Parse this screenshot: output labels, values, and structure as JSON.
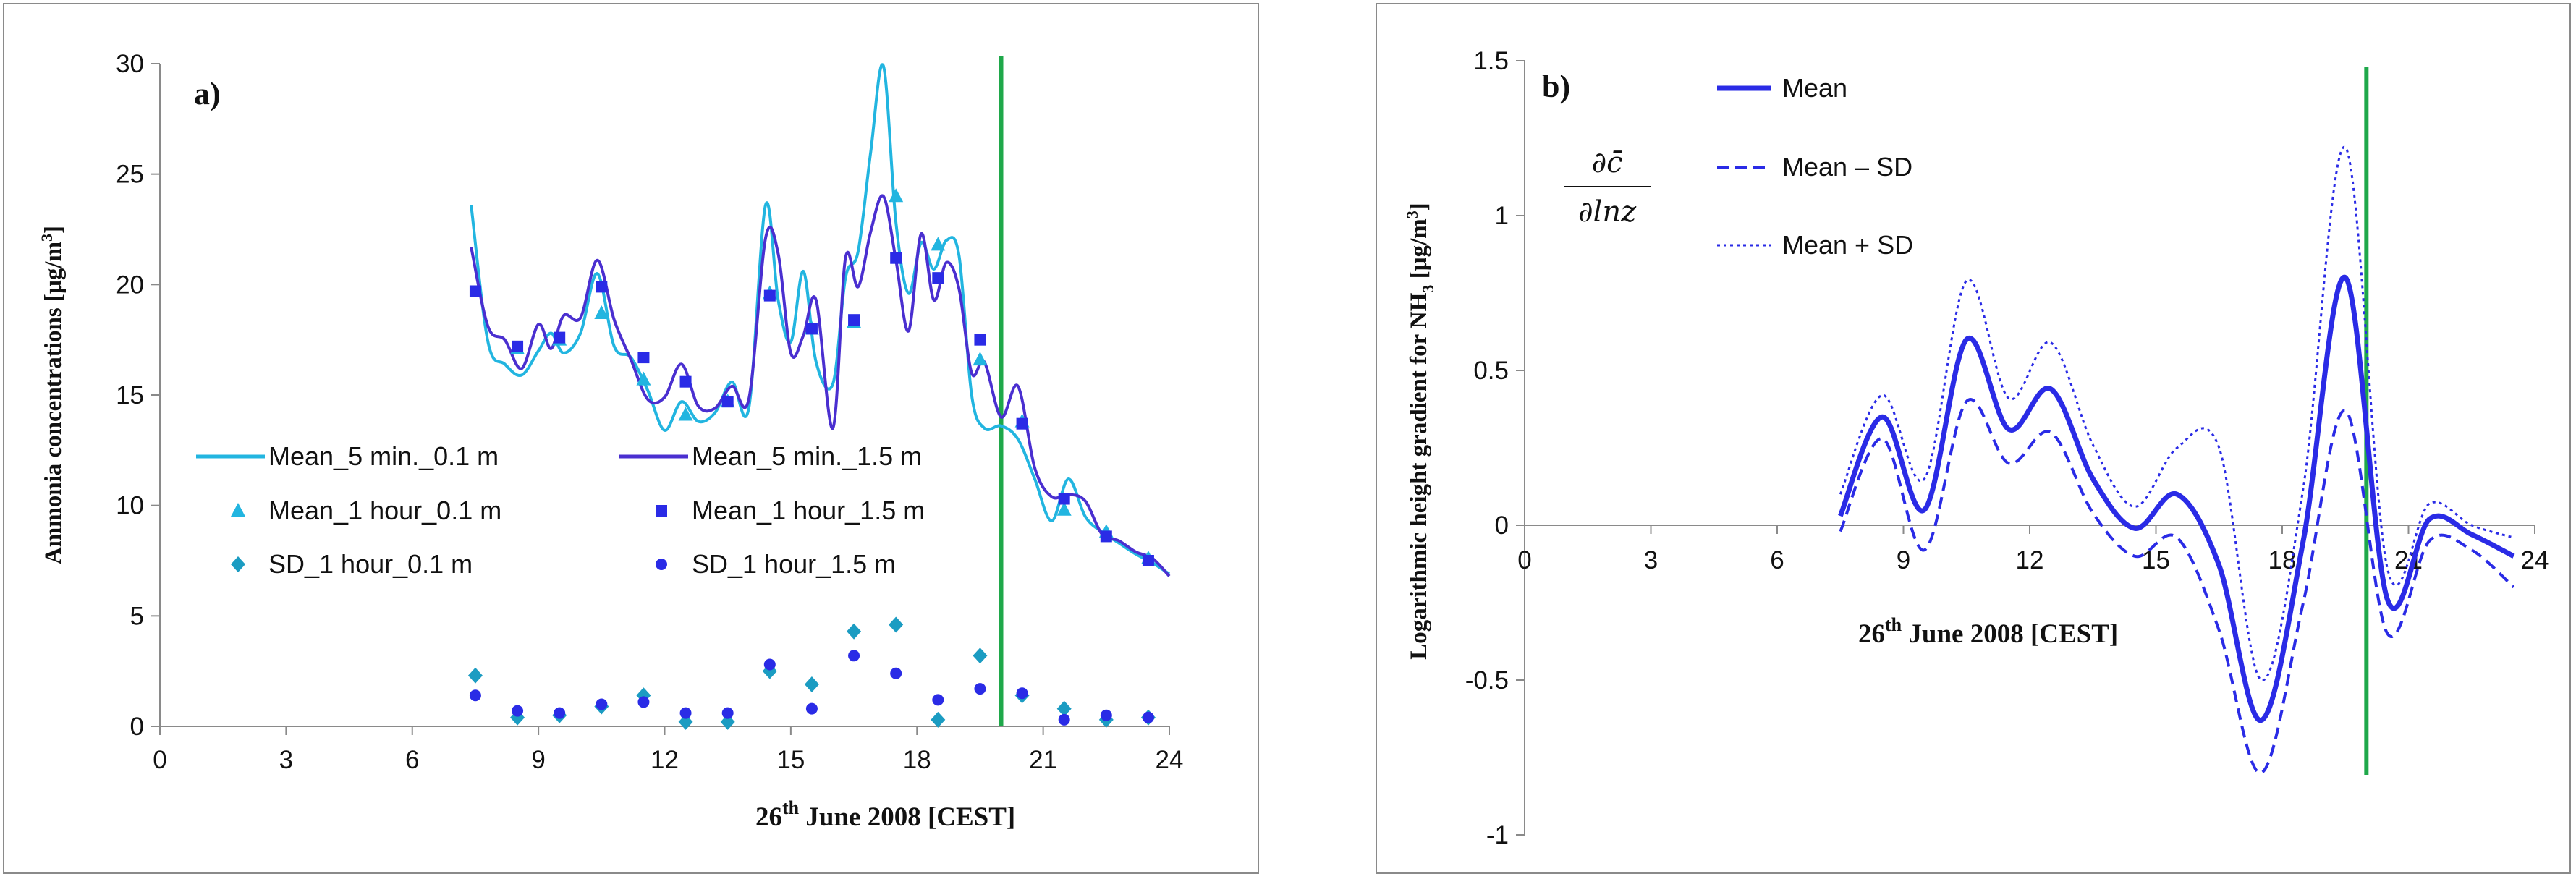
{
  "colors": {
    "cyan": "#22b5e0",
    "purple": "#4a2fd0",
    "teal": "#1b9cc2",
    "blue": "#2a2be6",
    "green": "#1fa84a",
    "axis": "#8a8a8a"
  },
  "chart_data": [
    {
      "type": "line",
      "panel_label": "a)",
      "title": "",
      "xlabel": "June 2008  [CEST]",
      "xlabel_day": "26",
      "xlabel_sup": "th",
      "ylabel_main": "Ammonia concentrations  [µg/m",
      "ylabel_sup": "3",
      "ylabel_end": "]",
      "xlim": [
        0,
        24
      ],
      "ylim": [
        0,
        30
      ],
      "xticks": [
        "0",
        "3",
        "6",
        "9",
        "12",
        "15",
        "18",
        "21",
        "24"
      ],
      "yticks": [
        "0",
        "5",
        "10",
        "15",
        "20",
        "25",
        "30"
      ],
      "vline_x": 20,
      "series": [
        {
          "name": "Mean_5 min._0.1 m",
          "kind": "line",
          "x": [
            7.4,
            7.8,
            8.2,
            8.6,
            9.0,
            9.3,
            9.6,
            10.0,
            10.4,
            10.8,
            11.2,
            11.6,
            12.0,
            12.4,
            12.8,
            13.2,
            13.6,
            14.0,
            14.4,
            14.7,
            15.0,
            15.3,
            15.6,
            16.0,
            16.3,
            16.6,
            16.9,
            17.2,
            17.5,
            17.8,
            18.1,
            18.4,
            18.7,
            19.0,
            19.3,
            19.6,
            20.0,
            20.4,
            20.8,
            21.2,
            21.6,
            22.0,
            22.4,
            22.8,
            23.2,
            23.6,
            24.0
          ],
          "y": [
            23.6,
            17.4,
            16.4,
            15.9,
            17.0,
            17.8,
            16.9,
            17.8,
            20.5,
            17.2,
            16.7,
            15.2,
            13.4,
            14.7,
            13.8,
            14.2,
            15.6,
            14.4,
            23.6,
            19.3,
            17.4,
            20.6,
            16.5,
            15.5,
            20.3,
            21.5,
            26.0,
            29.9,
            22.8,
            19.6,
            21.9,
            20.7,
            22.0,
            21.3,
            15.0,
            13.5,
            13.6,
            13.0,
            11.2,
            9.3,
            11.2,
            9.5,
            8.8,
            8.3,
            7.8,
            7.4,
            6.9
          ]
        },
        {
          "name": "Mean_5 min._1.5 m",
          "kind": "line",
          "x": [
            7.4,
            7.8,
            8.2,
            8.6,
            9.0,
            9.3,
            9.6,
            10.0,
            10.4,
            10.8,
            11.2,
            11.6,
            12.0,
            12.4,
            12.8,
            13.2,
            13.6,
            14.0,
            14.4,
            14.7,
            15.0,
            15.3,
            15.6,
            16.0,
            16.3,
            16.6,
            16.9,
            17.2,
            17.5,
            17.8,
            18.1,
            18.4,
            18.7,
            19.0,
            19.3,
            19.6,
            20.0,
            20.4,
            20.8,
            21.2,
            21.6,
            22.0,
            22.4,
            22.8,
            23.2,
            23.6,
            24.0
          ],
          "y": [
            21.7,
            18.1,
            17.5,
            16.2,
            18.2,
            17.1,
            18.6,
            18.5,
            21.1,
            18.4,
            16.6,
            14.8,
            14.9,
            16.4,
            14.5,
            14.4,
            15.4,
            14.8,
            22.1,
            21.4,
            16.9,
            17.7,
            19.3,
            13.5,
            21.2,
            19.9,
            22.4,
            24.0,
            21.1,
            17.9,
            22.3,
            19.3,
            21.0,
            19.8,
            16.0,
            16.5,
            14.0,
            15.4,
            11.7,
            10.4,
            10.5,
            10.2,
            8.7,
            8.4,
            7.9,
            7.6,
            6.8
          ]
        },
        {
          "name": "Mean_1 hour_0.1 m",
          "kind": "triangle",
          "x": [
            8.5,
            9.5,
            10.5,
            11.5,
            12.5,
            13.5,
            14.5,
            15.5,
            16.5,
            17.5,
            18.5,
            19.5,
            20.5,
            21.5,
            22.5,
            23.5
          ],
          "y": [
            17.1,
            17.5,
            18.7,
            15.7,
            14.1,
            14.7,
            19.6,
            18.0,
            18.3,
            24.0,
            21.8,
            16.6,
            13.8,
            9.8,
            8.8,
            7.6
          ]
        },
        {
          "name": "Mean_1 hour_1.5 m",
          "kind": "square",
          "x": [
            7.5,
            8.5,
            9.5,
            10.5,
            11.5,
            12.5,
            13.5,
            14.5,
            15.5,
            16.5,
            17.5,
            18.5,
            19.5,
            20.5,
            21.5,
            22.5,
            23.5
          ],
          "y": [
            19.7,
            17.2,
            17.6,
            19.9,
            16.7,
            15.6,
            14.7,
            19.5,
            18.0,
            18.4,
            21.2,
            20.3,
            17.5,
            13.7,
            10.3,
            8.6,
            7.5
          ]
        },
        {
          "name": "SD_1 hour_0.1 m",
          "kind": "diamond",
          "x": [
            7.5,
            8.5,
            9.5,
            10.5,
            11.5,
            12.5,
            13.5,
            14.5,
            15.5,
            16.5,
            17.5,
            18.5,
            19.5,
            20.5,
            21.5,
            22.5,
            23.5
          ],
          "y": [
            2.3,
            0.4,
            0.5,
            0.9,
            1.4,
            0.2,
            0.2,
            2.5,
            1.9,
            4.3,
            4.6,
            0.3,
            3.2,
            1.4,
            0.8,
            0.3,
            0.4
          ]
        },
        {
          "name": "SD_1 hour_1.5 m",
          "kind": "circle",
          "x": [
            7.5,
            8.5,
            9.5,
            10.5,
            11.5,
            12.5,
            13.5,
            14.5,
            15.5,
            16.5,
            17.5,
            18.5,
            19.5,
            20.5,
            21.5,
            22.5,
            23.5
          ],
          "y": [
            1.4,
            0.7,
            0.6,
            1.0,
            1.1,
            0.6,
            0.6,
            2.8,
            0.8,
            3.2,
            2.4,
            1.2,
            1.7,
            1.5,
            0.3,
            0.5,
            0.4
          ]
        }
      ]
    },
    {
      "type": "line",
      "panel_label": "b)",
      "title": "",
      "xlabel": "June 2008  [CEST]",
      "xlabel_day": "26",
      "xlabel_sup": "th",
      "ylabel_main": "Logarithmic height gradient for NH",
      "ylabel_sub": "3",
      "ylabel_mid": "  [µg/m",
      "ylabel_sup": "3",
      "ylabel_end": "]",
      "formula_num": "∂c̄",
      "formula_den": "∂lnz",
      "xlim": [
        0,
        24
      ],
      "ylim": [
        -1,
        1.5
      ],
      "xticks": [
        "0",
        "3",
        "6",
        "9",
        "12",
        "15",
        "18",
        "21",
        "24"
      ],
      "yticks": [
        "-1",
        "-0.5",
        "0",
        "0.5",
        "1",
        "1.5"
      ],
      "vline_x": 20,
      "series": [
        {
          "name": "Mean",
          "kind": "solid",
          "x": [
            7.5,
            8.5,
            9.5,
            10.5,
            11.5,
            12.5,
            13.5,
            14.5,
            15.5,
            16.5,
            17.5,
            18.5,
            19.5,
            20.5,
            21.5,
            22.5,
            23.5
          ],
          "y": [
            0.03,
            0.35,
            0.05,
            0.6,
            0.31,
            0.44,
            0.15,
            -0.01,
            0.1,
            -0.13,
            -0.63,
            -0.05,
            0.8,
            -0.24,
            0.02,
            -0.03,
            -0.1
          ]
        },
        {
          "name": "Mean – SD",
          "kind": "dashed",
          "x": [
            7.5,
            8.5,
            9.5,
            10.5,
            11.5,
            12.5,
            13.5,
            14.5,
            15.5,
            16.5,
            17.5,
            18.5,
            19.5,
            20.5,
            21.5,
            22.5,
            23.5
          ],
          "y": [
            -0.02,
            0.28,
            -0.08,
            0.4,
            0.2,
            0.3,
            0.04,
            -0.1,
            -0.04,
            -0.34,
            -0.8,
            -0.25,
            0.37,
            -0.35,
            -0.05,
            -0.08,
            -0.2
          ]
        },
        {
          "name": "Mean + SD",
          "kind": "dotted",
          "x": [
            7.5,
            8.5,
            9.5,
            10.5,
            11.5,
            12.5,
            13.5,
            14.5,
            15.5,
            16.5,
            17.5,
            18.5,
            19.5,
            20.5,
            21.5,
            22.5,
            23.5
          ],
          "y": [
            0.1,
            0.42,
            0.15,
            0.79,
            0.41,
            0.59,
            0.26,
            0.06,
            0.25,
            0.25,
            -0.5,
            0.12,
            1.22,
            -0.14,
            0.07,
            0.0,
            -0.04
          ]
        }
      ]
    }
  ]
}
